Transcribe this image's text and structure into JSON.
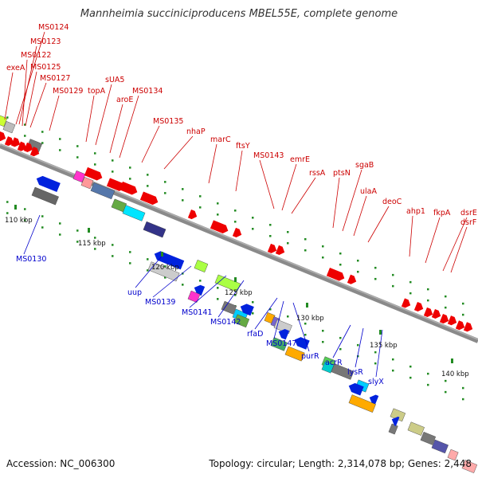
{
  "title": "Mannheimia succiniciproducens MBEL55E, complete genome",
  "footer": {
    "accession": "Accession: NC_006300",
    "summary": "Topology: circular; Length: 2,314,078 bp; Genes: 2,448"
  },
  "colors": {
    "top_label": "#cc0000",
    "bottom_label": "#0000cc",
    "backbone": "#888888",
    "tick": "#228b22",
    "forward_arrow": "#ee0000",
    "reverse_arrow": "#0022dd"
  },
  "scale_labels": [
    "110 kbp",
    "115 kbp",
    "120 kbp",
    "125 kbp",
    "130 kbp",
    "135 kbp",
    "140 kbp"
  ],
  "top_genes": [
    "exeA",
    "MS0124",
    "MS0123",
    "MS0122",
    "MS0125",
    "MS0127",
    "MS0129",
    "topA",
    "sUA5",
    "aroE",
    "MS0134",
    "MS0135",
    "nhaP",
    "marC",
    "ftsY",
    "MS0143",
    "emrE",
    "rssA",
    "ptsN",
    "sgaB",
    "ulaA",
    "deoC",
    "ahp1",
    "fkpA",
    "dsrE",
    "dsrF"
  ],
  "bottom_genes": [
    "MS0130",
    "uup",
    "MS0139",
    "MS0141",
    "MS0142",
    "rfaD",
    "MS0147",
    "purR",
    "acrR",
    "lysR",
    "slyX"
  ]
}
